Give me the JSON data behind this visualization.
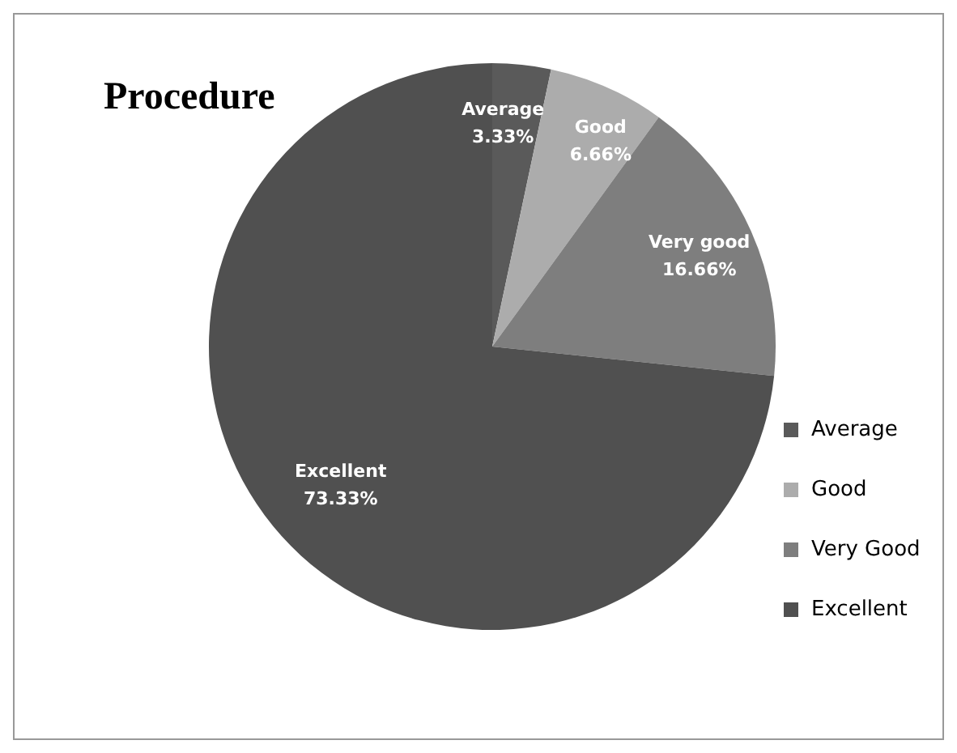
{
  "chart_data": {
    "type": "pie",
    "title": "Procedure",
    "categories": [
      "Average",
      "Good",
      "Very Good",
      "Excellent"
    ],
    "values": [
      3.33,
      6.66,
      16.66,
      73.33
    ],
    "colors": [
      "#5a5a5a",
      "#acacac",
      "#7e7e7e",
      "#505050"
    ],
    "value_labels": [
      "Average\n3.33%",
      "Good\n6.66%",
      "Very good\n16.66%",
      "Excellent\n73.33%"
    ],
    "legend": "right"
  }
}
